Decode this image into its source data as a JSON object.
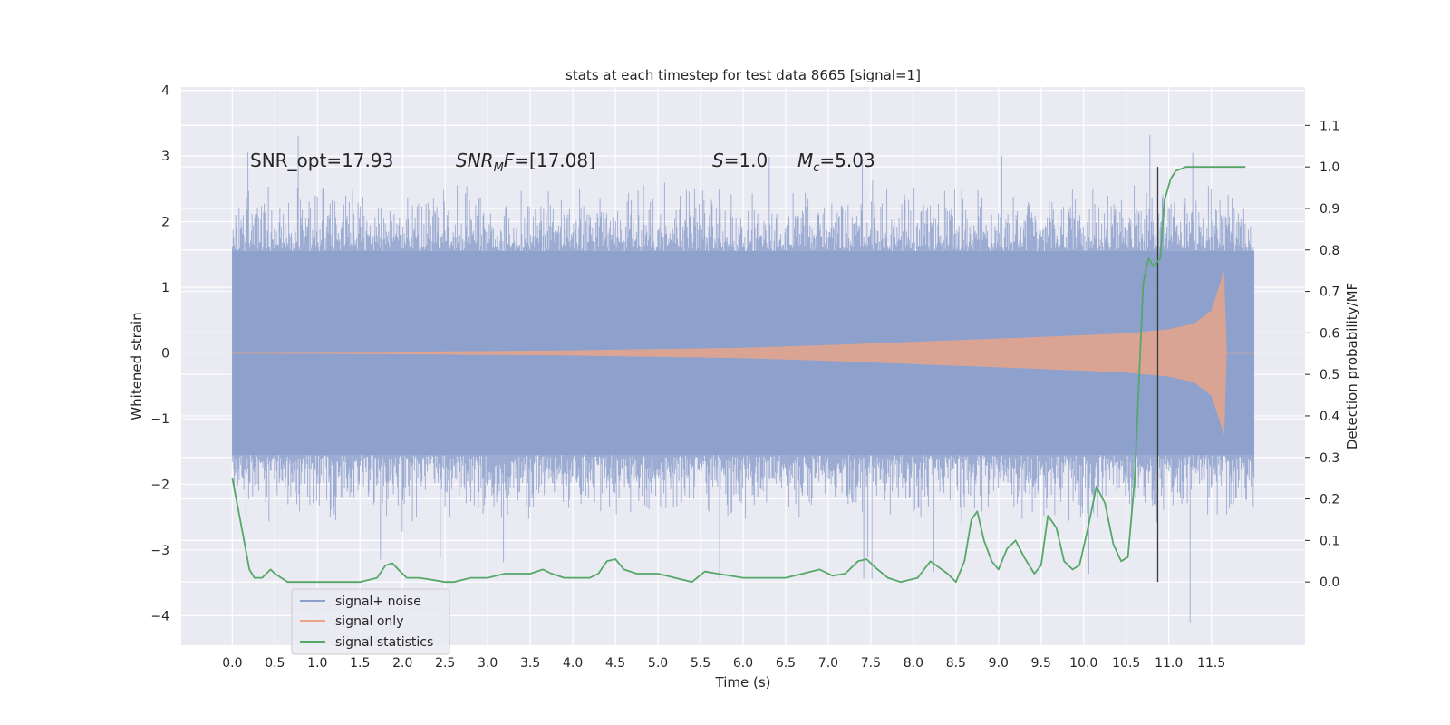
{
  "chart_data": {
    "type": "line",
    "title": "stats at each timestep for test data 8665 [signal=1]",
    "xlabel": "Time (s)",
    "ylabel": "Whitened strain",
    "y2label": "Detection probability/MF",
    "xlim": [
      -0.6,
      12.6
    ],
    "ylim": [
      -4.45,
      4.05
    ],
    "y2lim": [
      -0.1525,
      1.1925
    ],
    "x_ticks": [
      "0.0",
      "0.5",
      "1.0",
      "1.5",
      "2.0",
      "2.5",
      "3.0",
      "3.5",
      "4.0",
      "4.5",
      "5.0",
      "5.5",
      "6.0",
      "6.5",
      "7.0",
      "7.5",
      "8.0",
      "8.5",
      "9.0",
      "9.5",
      "10.0",
      "10.5",
      "11.0",
      "11.5"
    ],
    "y_ticks": [
      "4",
      "3",
      "2",
      "1",
      "0",
      "−1",
      "−2",
      "−3",
      "−4"
    ],
    "y2_ticks": [
      "1.1",
      "1.0",
      "0.9",
      "0.8",
      "0.7",
      "0.6",
      "0.5",
      "0.4",
      "0.3",
      "0.2",
      "0.1",
      "0.0"
    ],
    "grid": true,
    "legend_position": "lower-left",
    "annotations": {
      "snr_opt": "SNR_opt=17.93",
      "snr_mf_sym": "SNR",
      "snr_mf_sub": "M",
      "snr_mf_rest": "F=[17.08]",
      "s_sym": "S",
      "s_rest": "=1.0",
      "mc_sym": "M",
      "mc_sub": "c",
      "mc_rest": "=5.03"
    },
    "marker_time": 10.87,
    "series": [
      {
        "name": "signal+ noise",
        "color": "#8da0cb",
        "axis": "left",
        "x_range": [
          0.0,
          12.0
        ],
        "envelope": {
          "core": 1.55,
          "typical_peak": 2.6,
          "max": 3.6,
          "min": -4.1
        }
      },
      {
        "name": "signal only",
        "color": "#e8a58a",
        "axis": "left",
        "x": [
          0.0,
          2.0,
          4.0,
          6.0,
          7.0,
          8.0,
          9.0,
          10.0,
          10.5,
          11.0,
          11.3,
          11.5,
          11.65,
          11.68
        ],
        "amplitude": [
          0.01,
          0.02,
          0.04,
          0.08,
          0.12,
          0.17,
          0.22,
          0.27,
          0.3,
          0.36,
          0.45,
          0.65,
          1.25,
          0.0
        ]
      },
      {
        "name": "signal statistics",
        "color": "#55a868",
        "axis": "right",
        "x": [
          0.0,
          0.12,
          0.2,
          0.26,
          0.35,
          0.45,
          0.5,
          0.65,
          0.8,
          1.0,
          1.2,
          1.5,
          1.7,
          1.8,
          1.88,
          1.95,
          2.05,
          2.2,
          2.5,
          2.6,
          2.8,
          3.0,
          3.2,
          3.35,
          3.5,
          3.65,
          3.75,
          3.9,
          4.05,
          4.2,
          4.3,
          4.4,
          4.5,
          4.6,
          4.75,
          5.0,
          5.2,
          5.4,
          5.55,
          5.7,
          6.0,
          6.3,
          6.5,
          6.7,
          6.9,
          7.05,
          7.2,
          7.35,
          7.45,
          7.55,
          7.7,
          7.85,
          8.05,
          8.2,
          8.4,
          8.5,
          8.6,
          8.68,
          8.75,
          8.83,
          8.92,
          9.0,
          9.1,
          9.2,
          9.3,
          9.42,
          9.5,
          9.58,
          9.68,
          9.77,
          9.87,
          9.95,
          10.05,
          10.15,
          10.25,
          10.35,
          10.44,
          10.52,
          10.6,
          10.7,
          10.76,
          10.82,
          10.9,
          10.95,
          11.02,
          11.08,
          11.2,
          11.4,
          11.6,
          11.9
        ],
        "y": [
          0.25,
          0.12,
          0.03,
          0.01,
          0.01,
          0.03,
          0.02,
          0.0,
          0.0,
          0.0,
          0.0,
          0.0,
          0.01,
          0.04,
          0.045,
          0.03,
          0.01,
          0.01,
          0.0,
          0.0,
          0.01,
          0.01,
          0.02,
          0.02,
          0.02,
          0.03,
          0.02,
          0.01,
          0.01,
          0.01,
          0.02,
          0.05,
          0.055,
          0.03,
          0.02,
          0.02,
          0.01,
          0.0,
          0.025,
          0.02,
          0.01,
          0.01,
          0.01,
          0.02,
          0.03,
          0.015,
          0.02,
          0.05,
          0.055,
          0.035,
          0.01,
          0.0,
          0.01,
          0.05,
          0.02,
          0.0,
          0.05,
          0.15,
          0.17,
          0.1,
          0.05,
          0.03,
          0.08,
          0.1,
          0.06,
          0.02,
          0.04,
          0.16,
          0.13,
          0.05,
          0.03,
          0.04,
          0.13,
          0.23,
          0.19,
          0.09,
          0.05,
          0.06,
          0.25,
          0.72,
          0.78,
          0.76,
          0.78,
          0.92,
          0.97,
          0.99,
          1.0,
          1.0,
          1.0,
          1.0
        ]
      }
    ]
  }
}
